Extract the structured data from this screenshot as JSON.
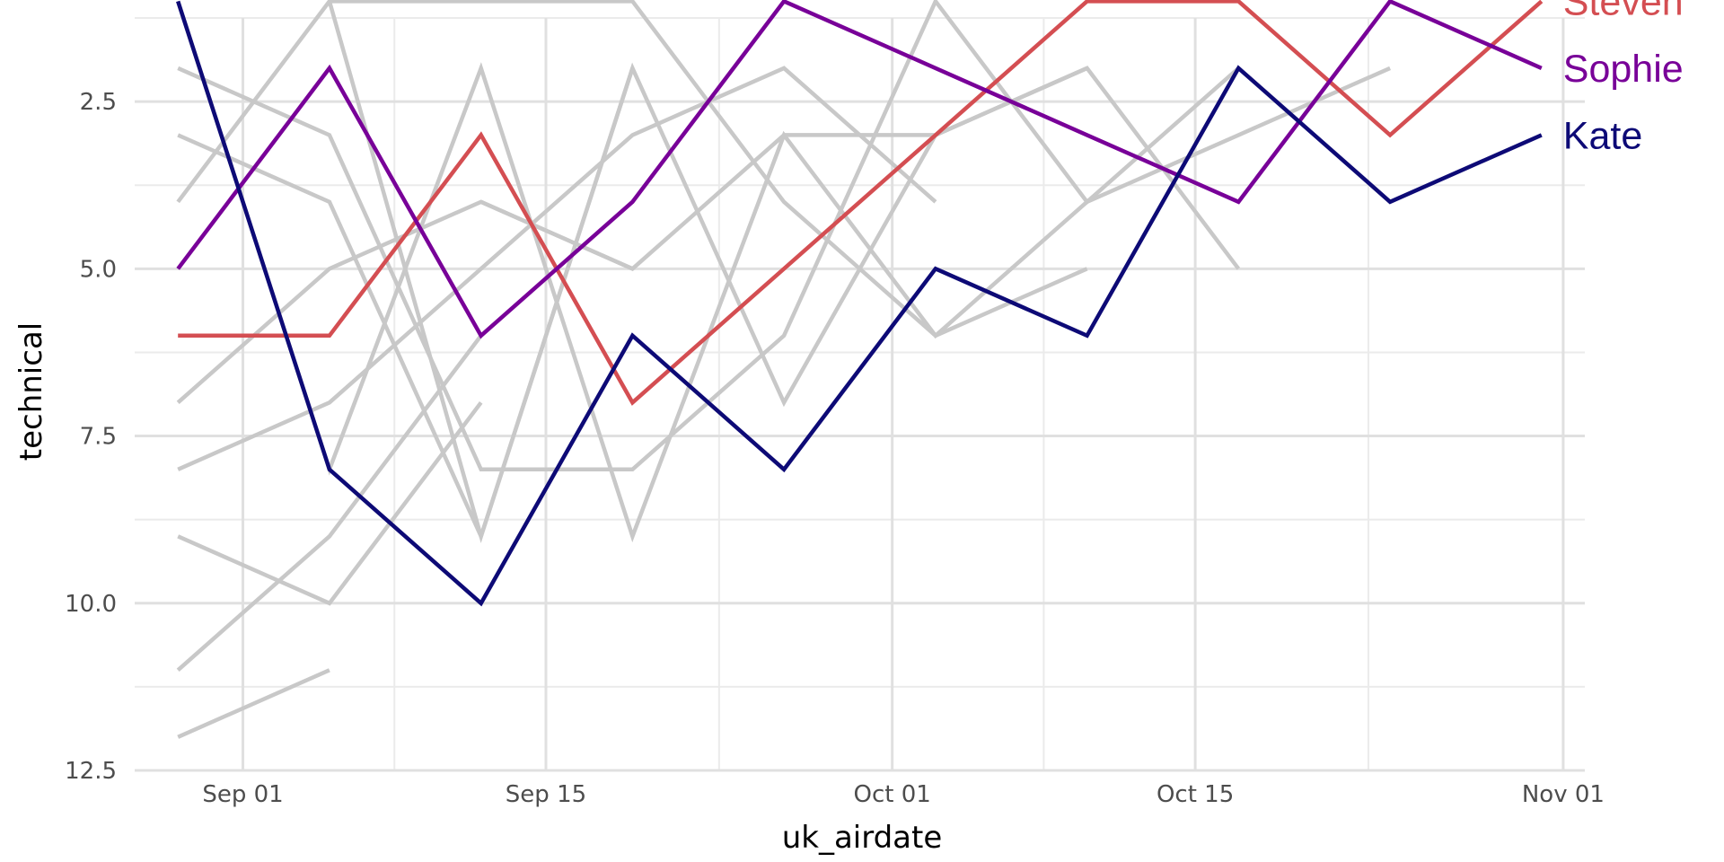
{
  "chart_data": {
    "type": "line",
    "xlabel": "uk_airdate",
    "ylabel": "technical",
    "x_axis": "date",
    "xlim": [
      "2017-08-27",
      "2017-11-02"
    ],
    "ylim": [
      1.25,
      12.5
    ],
    "y_reversed": true,
    "grid": true,
    "legend": "direct labels at line ends",
    "x_ticks": [
      {
        "value": "2017-09-01",
        "label": "Sep 01"
      },
      {
        "value": "2017-09-15",
        "label": "Sep 15"
      },
      {
        "value": "2017-10-01",
        "label": "Oct 01"
      },
      {
        "value": "2017-10-15",
        "label": "Oct 15"
      },
      {
        "value": "2017-11-01",
        "label": "Nov 01"
      }
    ],
    "y_ticks": [
      {
        "value": 2.5,
        "label": "2.5"
      },
      {
        "value": 5.0,
        "label": "5.0"
      },
      {
        "value": 7.5,
        "label": "7.5"
      },
      {
        "value": 10.0,
        "label": "10.0"
      },
      {
        "value": 12.5,
        "label": "12.5"
      }
    ],
    "background_series": [
      {
        "x": [
          "2017-08-29",
          "2017-09-05"
        ],
        "y": [
          12,
          11
        ]
      },
      {
        "x": [
          "2017-08-29",
          "2017-09-05",
          "2017-09-12"
        ],
        "y": [
          11,
          9,
          6
        ]
      },
      {
        "x": [
          "2017-08-29",
          "2017-09-05",
          "2017-09-12"
        ],
        "y": [
          9,
          10,
          7
        ]
      },
      {
        "x": [
          "2017-08-29",
          "2017-09-05",
          "2017-09-12",
          "2017-09-19"
        ],
        "y": [
          3,
          4,
          9,
          2
        ]
      },
      {
        "x": [
          "2017-08-29",
          "2017-09-05",
          "2017-09-12",
          "2017-09-19",
          "2017-09-26",
          "2017-10-03"
        ],
        "y": [
          8,
          7,
          5,
          3,
          2,
          4
        ]
      },
      {
        "x": [
          "2017-08-29",
          "2017-09-05",
          "2017-09-12",
          "2017-09-19",
          "2017-09-26",
          "2017-10-03",
          "2017-10-10",
          "2017-10-17"
        ],
        "y": [
          2,
          3,
          8,
          8,
          6,
          1,
          4,
          2
        ]
      },
      {
        "x": [
          "2017-08-29",
          "2017-09-05",
          "2017-09-12",
          "2017-09-19"
        ],
        "y": [
          7,
          5,
          4,
          5
        ]
      },
      {
        "x": [
          "2017-08-29",
          "2017-09-05",
          "2017-09-12",
          "2017-09-19",
          "2017-09-26",
          "2017-10-03",
          "2017-10-10"
        ],
        "y": [
          4,
          1,
          9,
          2,
          7,
          3,
          2
        ]
      },
      {
        "x": [
          "2017-08-29",
          "2017-09-05",
          "2017-09-12",
          "2017-09-19",
          "2017-09-26",
          "2017-10-03",
          "2017-10-10",
          "2017-10-17",
          "2017-10-24"
        ],
        "y": [
          1,
          8,
          2,
          9,
          3,
          6,
          4,
          3,
          2
        ]
      },
      {
        "x": [
          "2017-09-05",
          "2017-09-12",
          "2017-09-19",
          "2017-09-26",
          "2017-10-03",
          "2017-10-10"
        ],
        "y": [
          1,
          1,
          1,
          4,
          6,
          5
        ]
      },
      {
        "x": [
          "2017-09-12",
          "2017-09-19",
          "2017-09-26",
          "2017-10-03",
          "2017-10-10",
          "2017-10-17"
        ],
        "y": [
          4,
          5,
          3,
          3,
          2,
          5
        ]
      }
    ],
    "background_color": "#c8c8c8",
    "series": [
      {
        "name": "Steven",
        "color": "#d44e52",
        "x": [
          "2017-08-29",
          "2017-09-05",
          "2017-09-12",
          "2017-09-19",
          "2017-09-26",
          "2017-10-03",
          "2017-10-10",
          "2017-10-17",
          "2017-10-24",
          "2017-10-31"
        ],
        "y": [
          6,
          6,
          3,
          7,
          5,
          3,
          1,
          1,
          3,
          1
        ]
      },
      {
        "name": "Sophie",
        "color": "#780098",
        "x": [
          "2017-08-29",
          "2017-09-05",
          "2017-09-12",
          "2017-09-19",
          "2017-09-26",
          "2017-10-03",
          "2017-10-10",
          "2017-10-17",
          "2017-10-24",
          "2017-10-31"
        ],
        "y": [
          5,
          2,
          6,
          4,
          1,
          2,
          3,
          4,
          1,
          2
        ]
      },
      {
        "name": "Kate",
        "color": "#0d0a76",
        "x": [
          "2017-08-29",
          "2017-09-05",
          "2017-09-12",
          "2017-09-19",
          "2017-09-26",
          "2017-10-03",
          "2017-10-10",
          "2017-10-17",
          "2017-10-24",
          "2017-10-31"
        ],
        "y": [
          1,
          8,
          10,
          6,
          8,
          5,
          6,
          2,
          4,
          3
        ]
      }
    ]
  }
}
